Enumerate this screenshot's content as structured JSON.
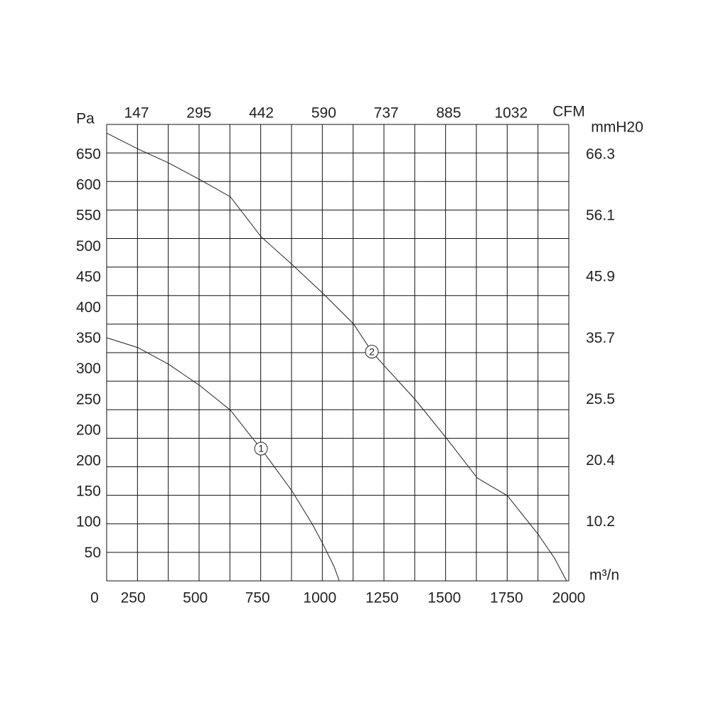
{
  "chart_data": {
    "type": "line",
    "xlabel": "m³/n",
    "ylabel": "Pa",
    "x2label": "CFM",
    "y2label": "mmH20",
    "origin_label": "0",
    "xlim": [
      144,
      2000
    ],
    "ylim": [
      0,
      687
    ],
    "xticks": [
      250,
      500,
      750,
      1000,
      1250,
      1500,
      1750,
      2000
    ],
    "top_labels": [
      147,
      295,
      442,
      590,
      737,
      885,
      1032
    ],
    "left_labels": [
      650,
      600,
      550,
      500,
      450,
      400,
      350,
      300,
      250,
      200,
      200,
      150,
      100,
      50
    ],
    "right_labels": [
      66.3,
      56.1,
      45.9,
      35.7,
      25.5,
      20.4,
      10.2
    ],
    "grid": true,
    "series": [
      {
        "name": "1",
        "color": "#222222",
        "x": [
          144,
          270,
          393,
          518,
          641,
          727,
          764,
          889,
          972,
          1012,
          1058,
          1078
        ],
        "values": [
          366,
          351,
          326,
          294,
          257,
          216,
          199,
          135,
          84,
          56,
          21,
          0
        ]
      },
      {
        "name": "2",
        "color": "#222222",
        "x": [
          144,
          270,
          393,
          518,
          641,
          764,
          889,
          1012,
          1135,
          1209,
          1261,
          1383,
          1506,
          1632,
          1754,
          1877,
          1943,
          1991
        ],
        "values": [
          674,
          650,
          629,
          604,
          578,
          518,
          476,
          433,
          387,
          345,
          323,
          273,
          216,
          155,
          128,
          70,
          34,
          0
        ]
      }
    ]
  }
}
